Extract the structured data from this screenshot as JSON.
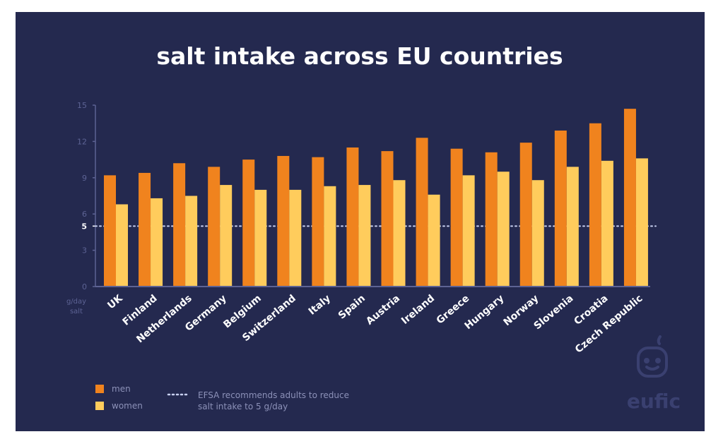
{
  "chart_data": {
    "type": "bar",
    "title": "salt intake across EU countries",
    "ylabel": "g/day salt",
    "yunit_lines": [
      "g/day",
      "salt"
    ],
    "ylim": [
      0,
      15
    ],
    "yticks": [
      0,
      3,
      5,
      6,
      9,
      12,
      15
    ],
    "reference_line": {
      "value": 5,
      "style": "dotted",
      "label": "EFSA recommends adults to reduce salt intake to 5 g/day",
      "label_lines": [
        "EFSA recommends adults to reduce",
        "salt intake to 5 g/day"
      ]
    },
    "categories": [
      "UK",
      "Finland",
      "Netherlands",
      "Germany",
      "Belgium",
      "Switzerland",
      "Italy",
      "Spain",
      "Austria",
      "Ireland",
      "Greece",
      "Hungary",
      "Norway",
      "Slovenia",
      "Croatia",
      "Czech Republic"
    ],
    "series": [
      {
        "name": "men",
        "color": "#f0831e",
        "values": [
          9.2,
          9.4,
          10.2,
          9.9,
          10.5,
          10.8,
          10.7,
          11.5,
          11.2,
          12.3,
          11.4,
          11.1,
          11.9,
          12.9,
          13.5,
          14.7
        ]
      },
      {
        "name": "women",
        "color": "#ffcc5c",
        "values": [
          6.8,
          7.3,
          7.5,
          8.4,
          8.0,
          8.0,
          8.3,
          8.4,
          8.8,
          7.6,
          9.2,
          9.5,
          8.8,
          9.9,
          10.4,
          10.6
        ]
      }
    ],
    "legend": {
      "placement": "bottom-left"
    },
    "grid": false
  },
  "colors": {
    "background": "#24294f",
    "axis": "#5d6394",
    "reference": "#c8d0f0",
    "logo": "#3a4070"
  },
  "logo": {
    "text": "eufic",
    "icon": "apple-face-icon"
  }
}
